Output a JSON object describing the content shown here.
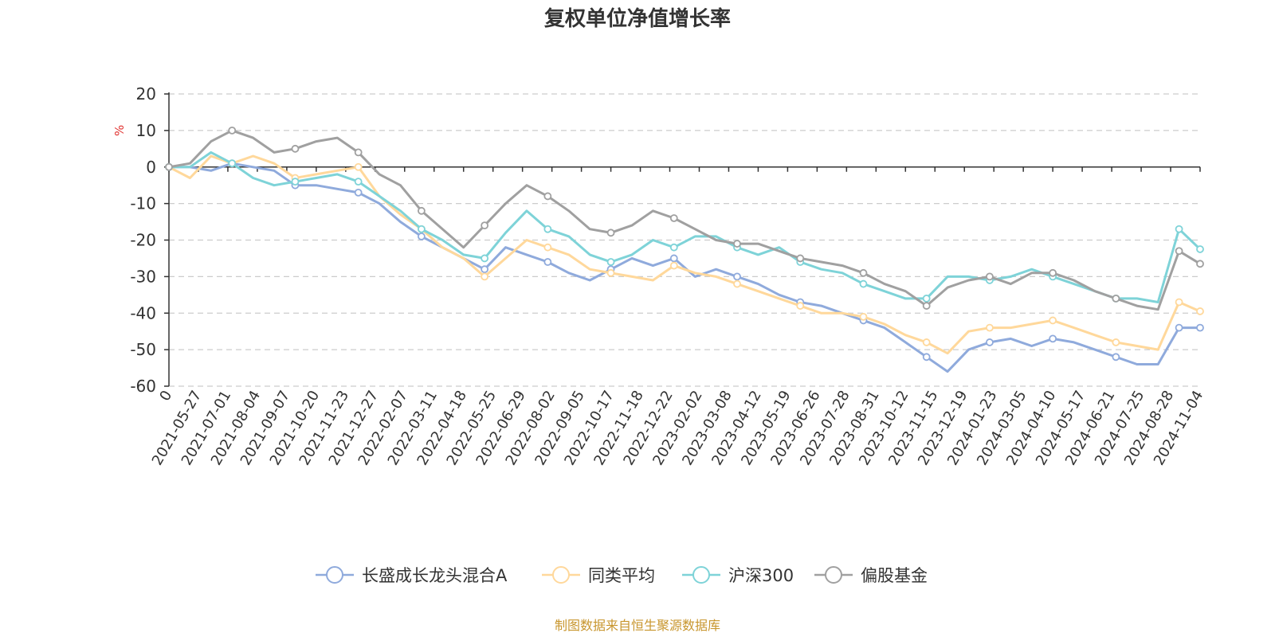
{
  "chart_data": {
    "type": "line",
    "title": "复权单位净值增长率",
    "ylabel": "%",
    "ylim": [
      -60,
      20
    ],
    "yticks": [
      20,
      10,
      0,
      -10,
      -20,
      -30,
      -40,
      -50,
      -60
    ],
    "x_labels": [
      "0",
      "2021-05-27",
      "2021-07-01",
      "2021-08-04",
      "2021-09-07",
      "2021-10-20",
      "2021-11-23",
      "2021-12-27",
      "2022-02-07",
      "2022-03-11",
      "2022-04-18",
      "2022-05-25",
      "2022-06-29",
      "2022-08-02",
      "2022-09-05",
      "2022-10-17",
      "2022-11-18",
      "2022-12-22",
      "2023-02-02",
      "2023-03-08",
      "2023-04-12",
      "2023-05-19",
      "2023-06-26",
      "2023-07-28",
      "2023-08-31",
      "2023-10-12",
      "2023-11-15",
      "2023-12-19",
      "2024-01-23",
      "2024-03-05",
      "2024-04-10",
      "2024-05-17",
      "2024-06-21",
      "2024-07-25",
      "2024-08-28",
      "2024-11-04"
    ],
    "grid": "horizontal-dashed",
    "legend_position": "bottom",
    "series": [
      {
        "name": "长盛成长龙头混合A",
        "color": "#8faadc",
        "values": [
          0,
          0,
          -1,
          1,
          0,
          -1,
          -5,
          -5,
          -6,
          -7,
          -10,
          -15,
          -19,
          -22,
          -25,
          -28,
          -22,
          -24,
          -26,
          -29,
          -31,
          -28,
          -25,
          -27,
          -25,
          -30,
          -28,
          -30,
          -32,
          -35,
          -37,
          -38,
          -40,
          -42,
          -44,
          -48,
          -52,
          -56,
          -50,
          -48,
          -47,
          -49,
          -47,
          -48,
          -50,
          -52,
          -54,
          -54,
          -44,
          -44
        ]
      },
      {
        "name": "同类平均",
        "color": "#ffd89b",
        "values": [
          0,
          -3,
          3,
          1,
          3,
          1,
          -3,
          -2,
          -1,
          0,
          -8,
          -13,
          -17,
          -22,
          -25,
          -30,
          -25,
          -20,
          -22,
          -24,
          -28,
          -29,
          -30,
          -31,
          -27,
          -29,
          -30,
          -32,
          -34,
          -36,
          -38,
          -40,
          -40,
          -41,
          -43,
          -46,
          -48,
          -51,
          -45,
          -44,
          -44,
          -43,
          -42,
          -44,
          -46,
          -48,
          -49,
          -50,
          -37,
          -39.5
        ]
      },
      {
        "name": "沪深300",
        "color": "#7ed3d8",
        "values": [
          0,
          0,
          4,
          1,
          -3,
          -5,
          -4,
          -3,
          -2,
          -4,
          -8,
          -12,
          -17,
          -20,
          -24,
          -25,
          -18,
          -12,
          -17,
          -19,
          -24,
          -26,
          -24,
          -20,
          -22,
          -19,
          -19,
          -22,
          -24,
          -22,
          -26,
          -28,
          -29,
          -32,
          -34,
          -36,
          -36,
          -30,
          -30,
          -31,
          -30,
          -28,
          -30,
          -32,
          -34,
          -36,
          -36,
          -37,
          -17,
          -22.5
        ]
      },
      {
        "name": "偏股基金",
        "color": "#a0a0a0",
        "values": [
          0,
          1,
          7,
          10,
          8,
          4,
          5,
          7,
          8,
          4,
          -2,
          -5,
          -12,
          -17,
          -22,
          -16,
          -10,
          -5,
          -8,
          -12,
          -17,
          -18,
          -16,
          -12,
          -14,
          -17,
          -20,
          -21,
          -21,
          -23,
          -25,
          -26,
          -27,
          -29,
          -32,
          -34,
          -38,
          -33,
          -31,
          -30,
          -32,
          -29,
          -29,
          -31,
          -34,
          -36,
          -38,
          -39,
          -23,
          -26.5
        ]
      }
    ]
  },
  "footer": {
    "source": "制图数据来自恒生聚源数据库"
  },
  "colors": {
    "axis": "#333333",
    "grid": "#cccccc",
    "unit": "#e0302e",
    "source": "#c8962e"
  }
}
